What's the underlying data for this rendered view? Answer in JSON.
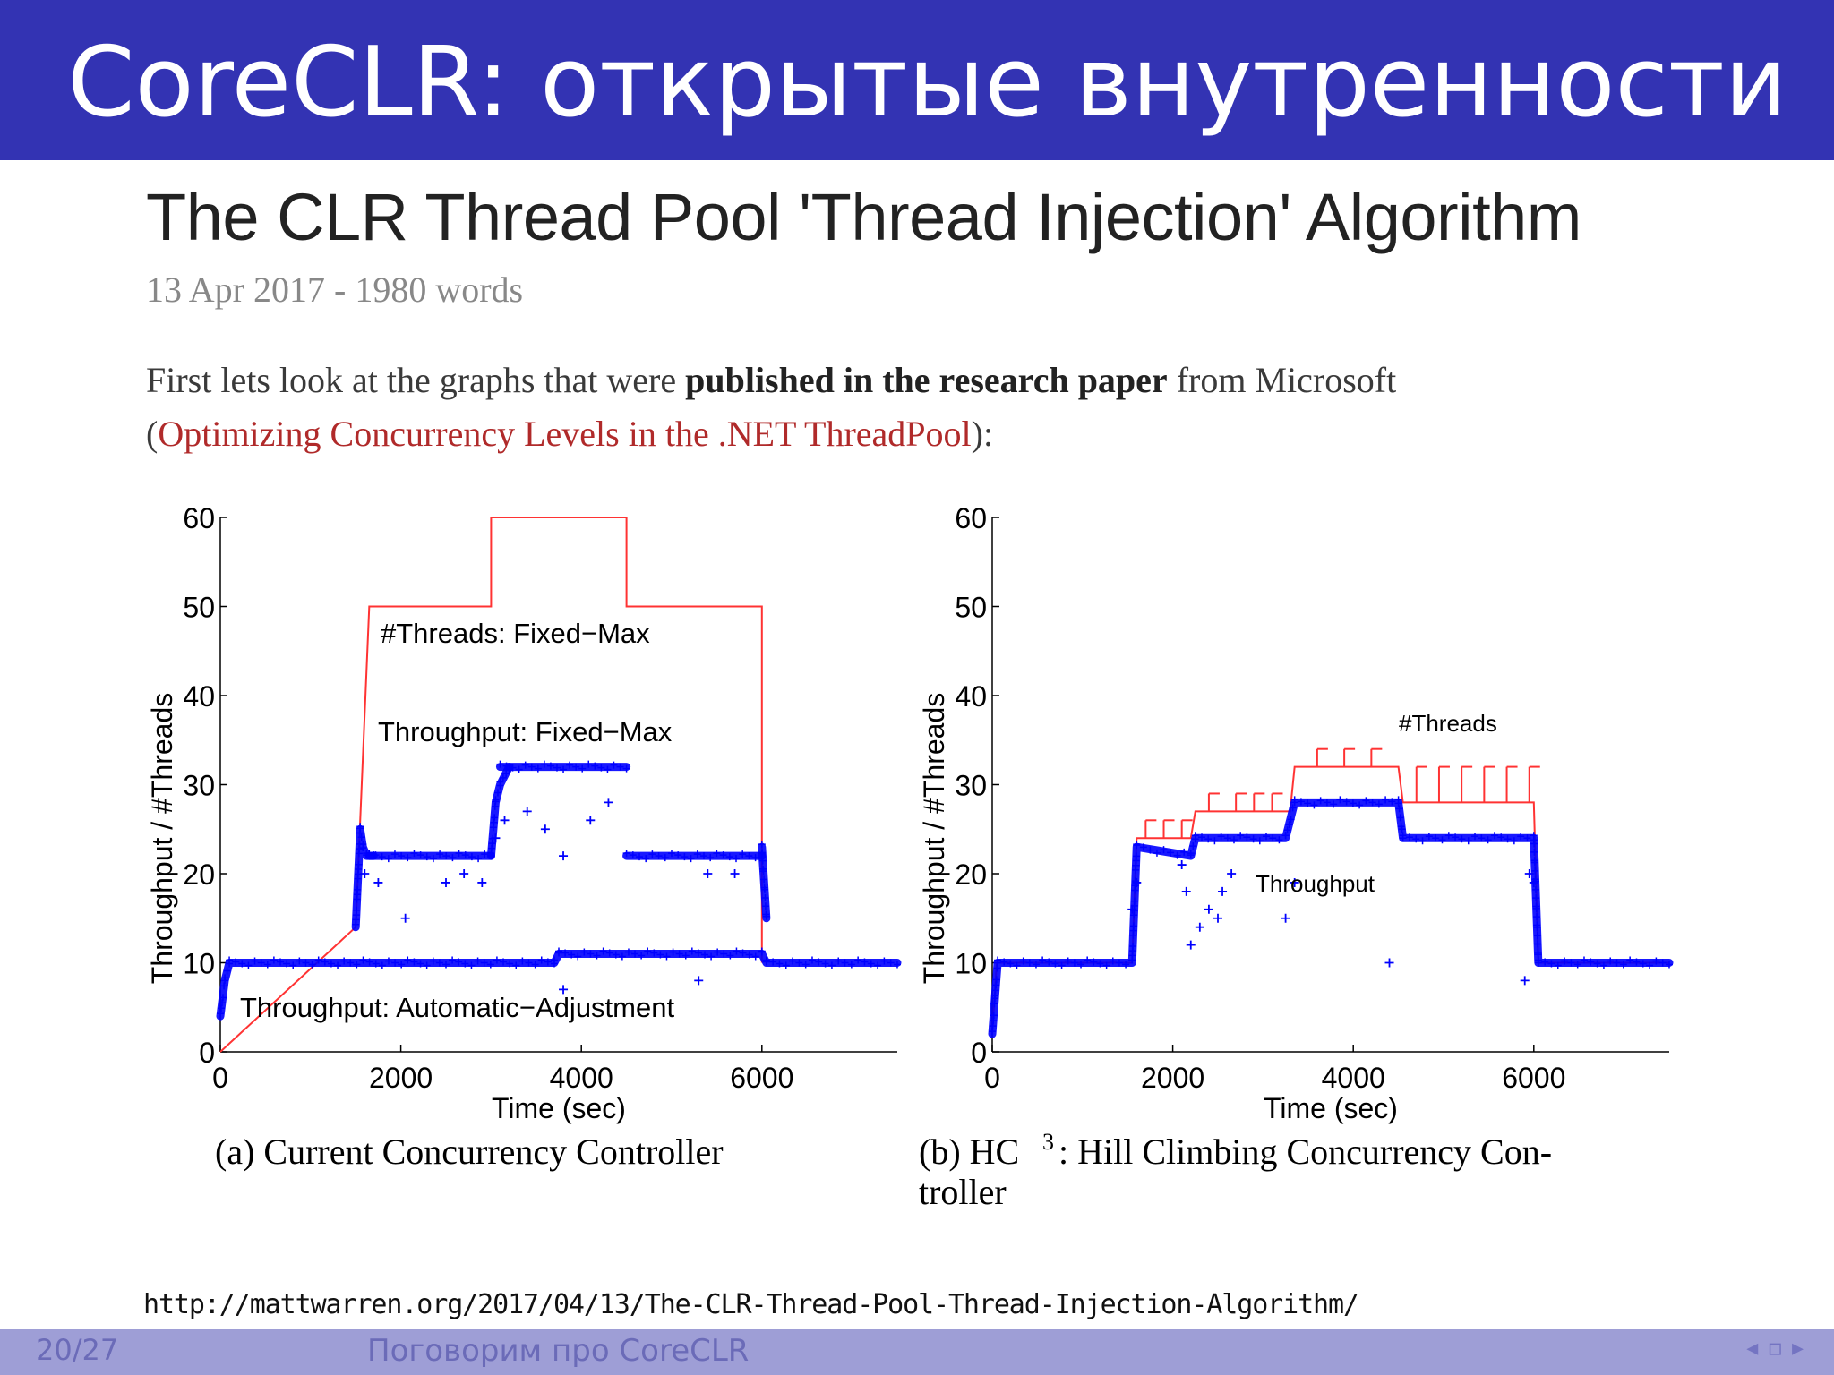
{
  "header": {
    "title": "CoreCLR: открытые внутренности"
  },
  "article": {
    "title": "The CLR Thread Pool 'Thread Injection' Algorithm",
    "meta": "13 Apr 2017 - 1980 words",
    "intro_prefix": "First lets look at the graphs that were ",
    "intro_bold": "published in the research paper",
    "intro_suffix": " from Microsoft",
    "paren_open": "(",
    "link_text": "Optimizing Concurrency Levels in the .NET ThreadPool",
    "paren_close": "):"
  },
  "chart_data": [
    {
      "type": "line",
      "caption": "(a) Current Concurrency Controller",
      "xlabel": "Time (sec)",
      "ylabel": "Throughput / #Threads",
      "xlim": [
        0,
        7500
      ],
      "ylim": [
        0,
        60
      ],
      "xticks": [
        0,
        2000,
        4000,
        6000
      ],
      "yticks": [
        0,
        10,
        20,
        30,
        40,
        50,
        60
      ],
      "annotations": [
        "#Threads: Fixed−Max",
        "Throughput: Fixed−Max",
        "Throughput: Automatic−Adjustment"
      ],
      "series": [
        {
          "name": "#Threads: Fixed−Max",
          "style": "line",
          "color": "#ff3333",
          "x": [
            0,
            1500,
            1650,
            3000,
            3000,
            4500,
            4500,
            6000,
            6000
          ],
          "y": [
            0,
            14,
            50,
            50,
            60,
            60,
            50,
            50,
            10
          ]
        },
        {
          "name": "Throughput: Fixed−Max",
          "style": "markers",
          "color": "#0000ff",
          "segments": [
            {
              "x": [
                1500,
                1550,
                1580,
                1620,
                1700
              ],
              "y": [
                14,
                25,
                23,
                22,
                22
              ]
            },
            {
              "x": [
                1650,
                3000
              ],
              "y": [
                22,
                22
              ]
            },
            {
              "x": [
                3000,
                3050,
                3100,
                3200
              ],
              "y": [
                22,
                28,
                30,
                32
              ]
            },
            {
              "x": [
                3100,
                4500
              ],
              "y": [
                32,
                32
              ]
            },
            {
              "x": [
                4500,
                6000
              ],
              "y": [
                22,
                22
              ]
            },
            {
              "x": [
                6000,
                6050
              ],
              "y": [
                23,
                15
              ]
            }
          ],
          "outliers": [
            {
              "x": 1600,
              "y": 20
            },
            {
              "x": 1750,
              "y": 19
            },
            {
              "x": 2050,
              "y": 15
            },
            {
              "x": 2500,
              "y": 19
            },
            {
              "x": 2700,
              "y": 20
            },
            {
              "x": 2900,
              "y": 19
            },
            {
              "x": 3050,
              "y": 24
            },
            {
              "x": 3150,
              "y": 26
            },
            {
              "x": 3400,
              "y": 27
            },
            {
              "x": 3600,
              "y": 25
            },
            {
              "x": 3800,
              "y": 22
            },
            {
              "x": 4100,
              "y": 26
            },
            {
              "x": 4300,
              "y": 28
            },
            {
              "x": 5400,
              "y": 20
            },
            {
              "x": 5700,
              "y": 20
            }
          ]
        },
        {
          "name": "Throughput: Automatic−Adjustment",
          "style": "markers",
          "color": "#0000ff",
          "x": [
            0,
            50,
            100,
            3700,
            3750,
            6000,
            6050,
            7500
          ],
          "y": [
            4,
            8,
            10,
            10,
            11,
            11,
            10,
            10
          ],
          "outliers": [
            {
              "x": 3800,
              "y": 7
            },
            {
              "x": 5300,
              "y": 8
            }
          ]
        }
      ]
    },
    {
      "type": "line",
      "caption_prefix": "(b) HC",
      "caption_sup": "3",
      "caption_line1": ": Hill Climbing Concurrency Con-",
      "caption_line2": "troller",
      "xlabel": "Time (sec)",
      "ylabel": "Throughput / #Threads",
      "xlim": [
        0,
        7500
      ],
      "ylim": [
        0,
        60
      ],
      "xticks": [
        0,
        2000,
        4000,
        6000
      ],
      "yticks": [
        0,
        10,
        20,
        30,
        40,
        50,
        60
      ],
      "annotations": [
        "#Threads",
        "Throughput"
      ],
      "series": [
        {
          "name": "#Threads",
          "style": "line",
          "color": "#ff3333",
          "x": [
            0,
            50,
            1550,
            1600,
            2200,
            2250,
            3300,
            3350,
            4500,
            4550,
            6000,
            6050,
            7500
          ],
          "y": [
            2,
            10,
            10,
            24,
            24,
            27,
            27,
            32,
            32,
            28,
            28,
            10,
            10
          ],
          "spikes": [
            {
              "x": 1700,
              "y": 26
            },
            {
              "x": 1900,
              "y": 26
            },
            {
              "x": 2100,
              "y": 26
            },
            {
              "x": 2400,
              "y": 29
            },
            {
              "x": 2700,
              "y": 29
            },
            {
              "x": 2900,
              "y": 29
            },
            {
              "x": 3100,
              "y": 29
            },
            {
              "x": 3600,
              "y": 34
            },
            {
              "x": 3900,
              "y": 34
            },
            {
              "x": 4200,
              "y": 34
            },
            {
              "x": 4700,
              "y": 32
            },
            {
              "x": 4950,
              "y": 32
            },
            {
              "x": 5200,
              "y": 32
            },
            {
              "x": 5450,
              "y": 32
            },
            {
              "x": 5700,
              "y": 32
            },
            {
              "x": 5950,
              "y": 32
            }
          ]
        },
        {
          "name": "Throughput",
          "style": "markers",
          "color": "#0000ff",
          "x": [
            0,
            30,
            60,
            1550,
            1600,
            2200,
            2250,
            3250,
            3350,
            4500,
            4550,
            6000,
            6050,
            7500
          ],
          "y": [
            2,
            6,
            10,
            10,
            23,
            22,
            24,
            24,
            28,
            28,
            24,
            24,
            10,
            10
          ],
          "outliers": [
            {
              "x": 1550,
              "y": 16
            },
            {
              "x": 1600,
              "y": 19
            },
            {
              "x": 2100,
              "y": 21
            },
            {
              "x": 2150,
              "y": 18
            },
            {
              "x": 2200,
              "y": 12
            },
            {
              "x": 2300,
              "y": 14
            },
            {
              "x": 2400,
              "y": 16
            },
            {
              "x": 2500,
              "y": 15
            },
            {
              "x": 2550,
              "y": 18
            },
            {
              "x": 2650,
              "y": 20
            },
            {
              "x": 3250,
              "y": 15
            },
            {
              "x": 3350,
              "y": 19
            },
            {
              "x": 4400,
              "y": 10
            },
            {
              "x": 5900,
              "y": 8
            },
            {
              "x": 5950,
              "y": 20
            },
            {
              "x": 6000,
              "y": 19
            }
          ]
        }
      ]
    }
  ],
  "source_url": "http://mattwarren.org/2017/04/13/The-CLR-Thread-Pool-Thread-Injection-Algorithm/",
  "footer": {
    "page": "20/27",
    "talk": "Поговорим про CoreCLR",
    "nav_left": "◂",
    "nav_frame": "▫",
    "nav_right": "▸"
  }
}
